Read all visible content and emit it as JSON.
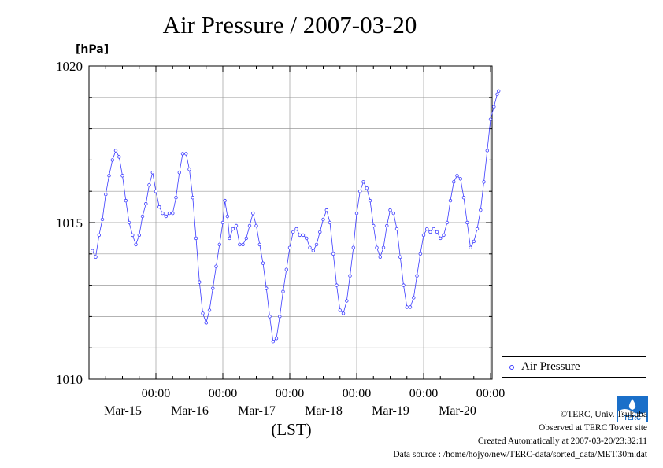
{
  "colors": {
    "series": "#3b3bff",
    "grid": "#9a9a9a",
    "axis": "#000000",
    "logo": "#1a6fc9"
  },
  "footer": {
    "copyright": "©TERC, Univ. Tsukuba",
    "observed": "Observed at TERC Tower site",
    "created": "Created Automatically at 2007-03-20/23:32:11",
    "source": "Data source : /home/hojyo/new/TERC-data/sorted_data/MET.30m.dat"
  },
  "logo": {
    "icon": "terc-logo-icon",
    "text": "TERC"
  },
  "chart_data": {
    "type": "line",
    "title": "Air Pressure / 2007-03-20",
    "ylabel": "[hPa]",
    "xlabel": "(LST)",
    "ylim": [
      1010,
      1020
    ],
    "yticks": [
      "1010",
      "1015",
      "1020"
    ],
    "xlim": [
      -0.95,
      5.0
    ],
    "xticks": [
      {
        "x": 0,
        "time": "00:00",
        "date": "Mar-15"
      },
      {
        "x": 1,
        "time": "00:00",
        "date": "Mar-16"
      },
      {
        "x": 2,
        "time": "00:00",
        "date": "Mar-17"
      },
      {
        "x": 3,
        "time": "00:00",
        "date": "Mar-18"
      },
      {
        "x": 4,
        "time": "00:00",
        "date": "Mar-19"
      },
      {
        "x": 5,
        "time": "00:00",
        "date": "Mar-20"
      }
    ],
    "grid": true,
    "legend": {
      "position": "right",
      "entries": [
        "Air Pressure"
      ]
    },
    "series": [
      {
        "name": "Air Pressure",
        "marker": "circle",
        "points": [
          [
            -0.95,
            1014.1
          ],
          [
            -0.9,
            1013.9
          ],
          [
            -0.85,
            1014.6
          ],
          [
            -0.8,
            1015.1
          ],
          [
            -0.75,
            1015.9
          ],
          [
            -0.7,
            1016.5
          ],
          [
            -0.65,
            1017.0
          ],
          [
            -0.6,
            1017.3
          ],
          [
            -0.55,
            1017.1
          ],
          [
            -0.5,
            1016.5
          ],
          [
            -0.45,
            1015.7
          ],
          [
            -0.4,
            1015.0
          ],
          [
            -0.35,
            1014.6
          ],
          [
            -0.3,
            1014.3
          ],
          [
            -0.25,
            1014.6
          ],
          [
            -0.2,
            1015.2
          ],
          [
            -0.15,
            1015.6
          ],
          [
            -0.1,
            1016.2
          ],
          [
            -0.05,
            1016.6
          ],
          [
            0.0,
            1016.0
          ],
          [
            0.05,
            1015.5
          ],
          [
            0.1,
            1015.3
          ],
          [
            0.15,
            1015.2
          ],
          [
            0.2,
            1015.3
          ],
          [
            0.25,
            1015.3
          ],
          [
            0.3,
            1015.8
          ],
          [
            0.35,
            1016.6
          ],
          [
            0.4,
            1017.2
          ],
          [
            0.45,
            1017.2
          ],
          [
            0.5,
            1016.7
          ],
          [
            0.55,
            1015.8
          ],
          [
            0.6,
            1014.5
          ],
          [
            0.65,
            1013.1
          ],
          [
            0.7,
            1012.1
          ],
          [
            0.75,
            1011.8
          ],
          [
            0.8,
            1012.2
          ],
          [
            0.85,
            1012.9
          ],
          [
            0.9,
            1013.6
          ],
          [
            0.95,
            1014.3
          ],
          [
            1.0,
            1015.0
          ],
          [
            1.03,
            1015.7
          ],
          [
            1.07,
            1015.2
          ],
          [
            1.1,
            1014.5
          ],
          [
            1.15,
            1014.8
          ],
          [
            1.2,
            1014.9
          ],
          [
            1.25,
            1014.3
          ],
          [
            1.3,
            1014.3
          ],
          [
            1.35,
            1014.5
          ],
          [
            1.4,
            1014.9
          ],
          [
            1.45,
            1015.3
          ],
          [
            1.5,
            1014.9
          ],
          [
            1.55,
            1014.3
          ],
          [
            1.6,
            1013.7
          ],
          [
            1.65,
            1012.9
          ],
          [
            1.7,
            1012.0
          ],
          [
            1.75,
            1011.2
          ],
          [
            1.8,
            1011.3
          ],
          [
            1.85,
            1012.0
          ],
          [
            1.9,
            1012.8
          ],
          [
            1.95,
            1013.5
          ],
          [
            2.0,
            1014.2
          ],
          [
            2.05,
            1014.7
          ],
          [
            2.1,
            1014.8
          ],
          [
            2.15,
            1014.6
          ],
          [
            2.2,
            1014.6
          ],
          [
            2.25,
            1014.5
          ],
          [
            2.3,
            1014.2
          ],
          [
            2.35,
            1014.1
          ],
          [
            2.4,
            1014.3
          ],
          [
            2.45,
            1014.7
          ],
          [
            2.5,
            1015.1
          ],
          [
            2.55,
            1015.4
          ],
          [
            2.6,
            1015.0
          ],
          [
            2.65,
            1014.0
          ],
          [
            2.7,
            1013.0
          ],
          [
            2.75,
            1012.2
          ],
          [
            2.8,
            1012.1
          ],
          [
            2.85,
            1012.5
          ],
          [
            2.9,
            1013.3
          ],
          [
            2.95,
            1014.2
          ],
          [
            3.0,
            1015.3
          ],
          [
            3.05,
            1016.0
          ],
          [
            3.1,
            1016.3
          ],
          [
            3.15,
            1016.1
          ],
          [
            3.2,
            1015.7
          ],
          [
            3.25,
            1014.9
          ],
          [
            3.3,
            1014.2
          ],
          [
            3.35,
            1013.9
          ],
          [
            3.4,
            1014.2
          ],
          [
            3.45,
            1014.9
          ],
          [
            3.5,
            1015.4
          ],
          [
            3.55,
            1015.3
          ],
          [
            3.6,
            1014.8
          ],
          [
            3.65,
            1013.9
          ],
          [
            3.7,
            1013.0
          ],
          [
            3.75,
            1012.3
          ],
          [
            3.8,
            1012.3
          ],
          [
            3.85,
            1012.6
          ],
          [
            3.9,
            1013.3
          ],
          [
            3.95,
            1014.0
          ],
          [
            4.0,
            1014.6
          ],
          [
            4.05,
            1014.8
          ],
          [
            4.1,
            1014.7
          ],
          [
            4.15,
            1014.8
          ],
          [
            4.2,
            1014.7
          ],
          [
            4.25,
            1014.5
          ],
          [
            4.3,
            1014.6
          ],
          [
            4.35,
            1015.0
          ],
          [
            4.4,
            1015.7
          ],
          [
            4.45,
            1016.3
          ],
          [
            4.5,
            1016.5
          ],
          [
            4.55,
            1016.4
          ],
          [
            4.6,
            1015.8
          ],
          [
            4.65,
            1015.0
          ],
          [
            4.7,
            1014.2
          ],
          [
            4.75,
            1014.4
          ],
          [
            4.8,
            1014.8
          ],
          [
            4.85,
            1015.4
          ],
          [
            4.9,
            1016.3
          ],
          [
            4.95,
            1017.3
          ],
          [
            5.0,
            1018.3
          ],
          [
            5.05,
            1018.7
          ],
          [
            5.1,
            1019.1
          ],
          [
            5.12,
            1019.2
          ]
        ]
      }
    ]
  }
}
